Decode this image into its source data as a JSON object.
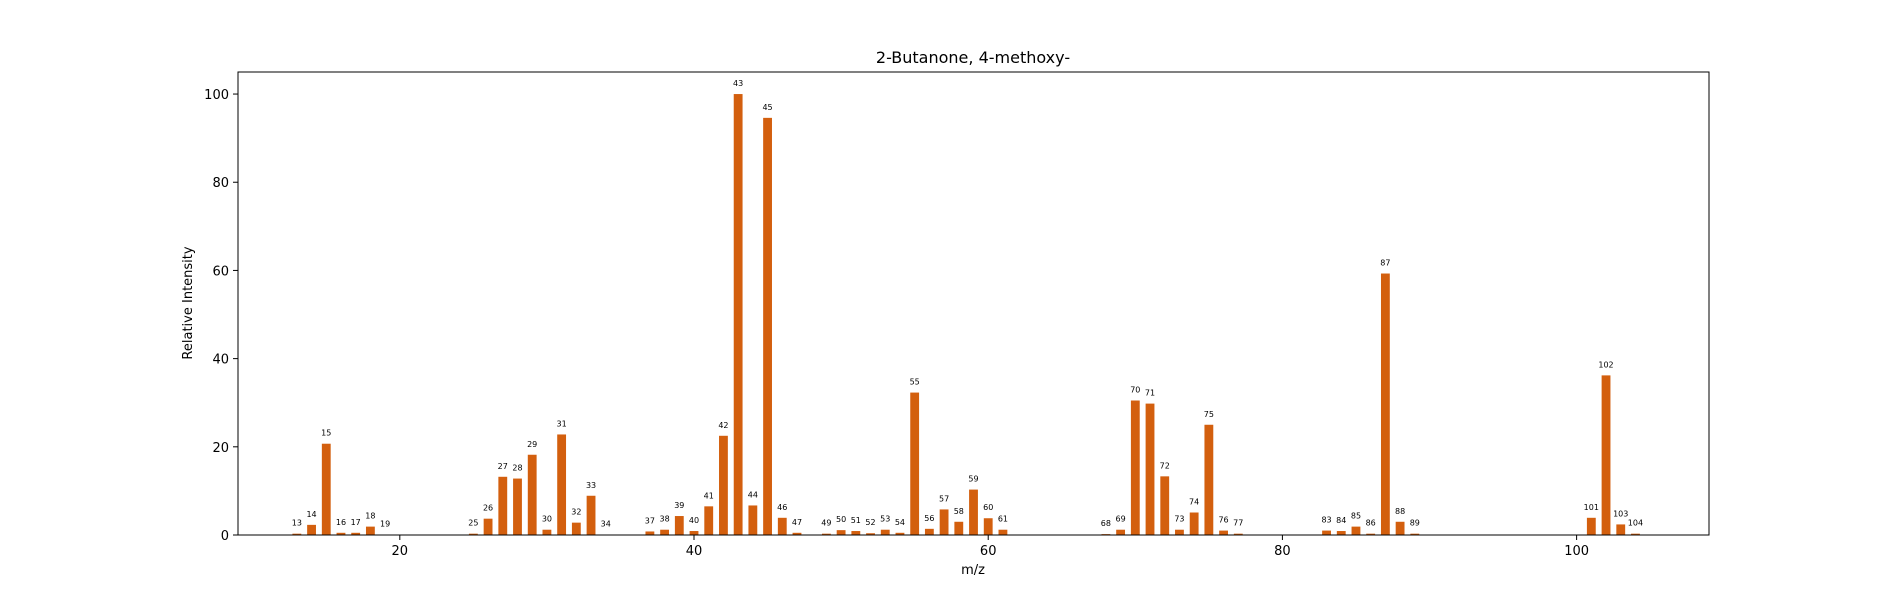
{
  "chart_data": {
    "type": "bar",
    "title": "2-Butanone, 4-methoxy-",
    "xlabel": "m/z",
    "ylabel": "Relative Intensity",
    "xlim": [
      9,
      109
    ],
    "ylim": [
      0,
      105
    ],
    "xticks": [
      20,
      40,
      60,
      80,
      100
    ],
    "yticks": [
      0,
      20,
      40,
      60,
      80,
      100
    ],
    "grid": false,
    "bar_color": "#d35f0e",
    "x": [
      13,
      14,
      15,
      16,
      17,
      18,
      19,
      25,
      26,
      27,
      28,
      29,
      30,
      31,
      32,
      33,
      34,
      37,
      38,
      39,
      40,
      41,
      42,
      43,
      44,
      45,
      46,
      47,
      49,
      50,
      51,
      52,
      53,
      54,
      55,
      56,
      57,
      58,
      59,
      60,
      61,
      68,
      69,
      70,
      71,
      72,
      73,
      74,
      75,
      76,
      77,
      83,
      84,
      85,
      86,
      87,
      88,
      89,
      101,
      102,
      103,
      104
    ],
    "values": [
      0.3,
      2.3,
      20.7,
      0.5,
      0.5,
      1.9,
      0.1,
      0.3,
      3.7,
      13.2,
      12.8,
      18.2,
      1.2,
      22.8,
      2.8,
      8.9,
      0.1,
      0.8,
      1.2,
      4.3,
      0.9,
      6.5,
      22.5,
      100,
      6.7,
      94.6,
      3.9,
      0.5,
      0.3,
      1.1,
      0.9,
      0.4,
      1.2,
      0.5,
      32.3,
      1.4,
      5.8,
      3.0,
      10.3,
      3.8,
      1.2,
      0.2,
      1.2,
      30.5,
      29.8,
      13.3,
      1.2,
      5.1,
      25.0,
      1.0,
      0.3,
      1.0,
      0.9,
      1.9,
      0.3,
      59.3,
      3.0,
      0.3,
      3.9,
      36.2,
      2.4,
      0.3
    ]
  }
}
